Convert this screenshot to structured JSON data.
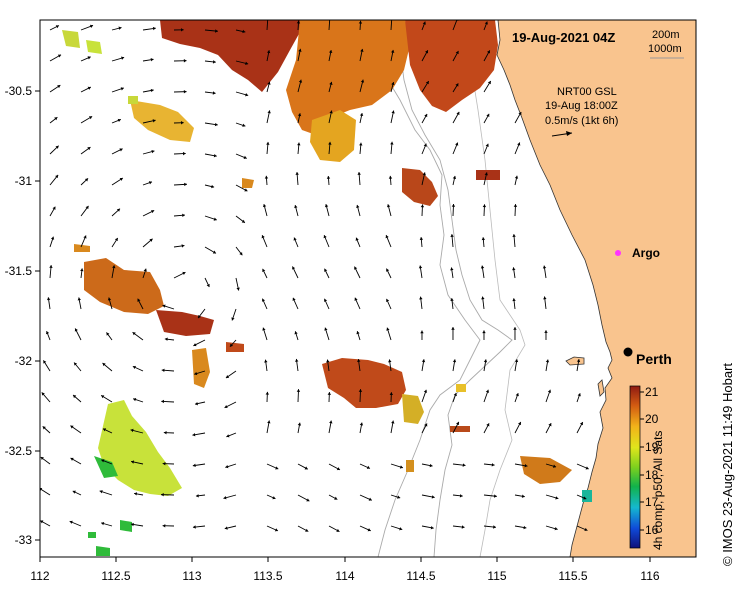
{
  "map": {
    "timestamp": "19-Aug-2021 04Z",
    "depth_legend": [
      "200m",
      "1000m"
    ],
    "current_info": [
      "NRT00 GSL",
      "19-Aug 18:00Z",
      "0.5m/s (1kt 6h)"
    ],
    "x_ticks": [
      "112",
      "112.5",
      "113",
      "113.5",
      "114",
      "114.5",
      "115",
      "115.5",
      "116"
    ],
    "y_ticks": [
      "-30.5",
      "-31",
      "-31.5",
      "-32",
      "-32.5",
      "-33"
    ],
    "city_label": "Perth",
    "argo_label": "Argo",
    "colorbar": {
      "ticks": [
        "21",
        "20",
        "19",
        "18",
        "17",
        "16"
      ],
      "label": "4h comp, p50, All Sats"
    },
    "credit": "© IMOS 23-Aug-2021 11:49 Hobart",
    "colors": {
      "land": "#f9c48e",
      "sst_warm": "#a93217",
      "sst_mid": "#d98a1c",
      "sst_cool": "#c8e23a",
      "argo": "#ff33ff"
    }
  }
}
